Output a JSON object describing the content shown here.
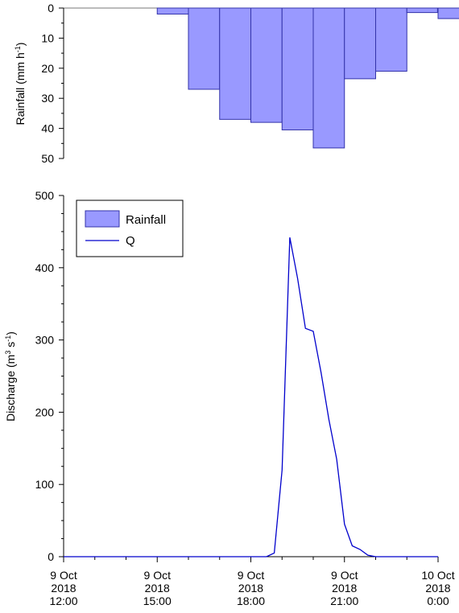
{
  "chart_data": [
    {
      "type": "bar",
      "panel": "rainfall",
      "ylabel": "Rainfall (mm h",
      "ylabel_sup": "-1",
      "ylabel_end": ")",
      "ylim": [
        0,
        50
      ],
      "y_inverted": true,
      "yticks": [
        0,
        10,
        20,
        30,
        40,
        50
      ],
      "ytick_labels": [
        "0",
        "10",
        "20",
        "30",
        "40",
        "50"
      ],
      "bar_color": "#9999ff",
      "bar_edge": "#3333aa",
      "bars": [
        {
          "start": "2018-10-09 15:00",
          "end": "2018-10-09 16:00",
          "value": 2
        },
        {
          "start": "2018-10-09 16:00",
          "end": "2018-10-09 17:00",
          "value": 27
        },
        {
          "start": "2018-10-09 17:00",
          "end": "2018-10-09 18:00",
          "value": 37
        },
        {
          "start": "2018-10-09 18:00",
          "end": "2018-10-09 19:00",
          "value": 38
        },
        {
          "start": "2018-10-09 19:00",
          "end": "2018-10-09 20:00",
          "value": 40.5
        },
        {
          "start": "2018-10-09 20:00",
          "end": "2018-10-09 21:00",
          "value": 46.5
        },
        {
          "start": "2018-10-09 21:00",
          "end": "2018-10-09 22:00",
          "value": 23.5
        },
        {
          "start": "2018-10-09 22:00",
          "end": "2018-10-09 23:00",
          "value": 21
        },
        {
          "start": "2018-10-09 23:00",
          "end": "2018-10-09 23:59",
          "value": 1.5
        },
        {
          "start": "2018-10-10 00:00",
          "end": "2018-10-10 01:00",
          "value": 3.5
        }
      ]
    },
    {
      "type": "line",
      "panel": "discharge",
      "ylabel": "Discharge (m",
      "ylabel_sup1": "3",
      "ylabel_mid": " s",
      "ylabel_sup2": "-1",
      "ylabel_end": ")",
      "ylim": [
        0,
        500
      ],
      "yticks": [
        0,
        100,
        200,
        300,
        400,
        500
      ],
      "ytick_labels": [
        "0",
        "100",
        "200",
        "300",
        "400",
        "500"
      ],
      "xlim": [
        "2018-10-09 12:00",
        "2018-10-10 00:00"
      ],
      "xticks": [
        {
          "t": "2018-10-09 12:00",
          "lines": [
            "9 Oct",
            "2018",
            "12:00"
          ]
        },
        {
          "t": "2018-10-09 15:00",
          "lines": [
            "9 Oct",
            "2018",
            "15:00"
          ]
        },
        {
          "t": "2018-10-09 18:00",
          "lines": [
            "9 Oct",
            "2018",
            "18:00"
          ]
        },
        {
          "t": "2018-10-09 21:00",
          "lines": [
            "9 Oct",
            "2018",
            "21:00"
          ]
        },
        {
          "t": "2018-10-10 00:00",
          "lines": [
            "10 Oct",
            "2018",
            "0:00"
          ]
        }
      ],
      "line_color": "#0000cc",
      "legend": {
        "placement": "top-left",
        "items": [
          {
            "label": "Rainfall",
            "kind": "bar"
          },
          {
            "label": "Q",
            "kind": "line"
          }
        ]
      },
      "series": [
        {
          "name": "Q",
          "points": [
            [
              "2018-10-09 12:00",
              0
            ],
            [
              "2018-10-09 18:30",
              0
            ],
            [
              "2018-10-09 18:45",
              5
            ],
            [
              "2018-10-09 19:00",
              120
            ],
            [
              "2018-10-09 19:15",
              442
            ],
            [
              "2018-10-09 19:30",
              385
            ],
            [
              "2018-10-09 19:45",
              316
            ],
            [
              "2018-10-09 20:00",
              312
            ],
            [
              "2018-10-09 20:15",
              255
            ],
            [
              "2018-10-09 20:30",
              190
            ],
            [
              "2018-10-09 20:45",
              135
            ],
            [
              "2018-10-09 21:00",
              45
            ],
            [
              "2018-10-09 21:15",
              15
            ],
            [
              "2018-10-09 21:30",
              10
            ],
            [
              "2018-10-09 21:45",
              2
            ],
            [
              "2018-10-09 22:00",
              0
            ],
            [
              "2018-10-10 00:00",
              0
            ]
          ]
        }
      ]
    }
  ]
}
